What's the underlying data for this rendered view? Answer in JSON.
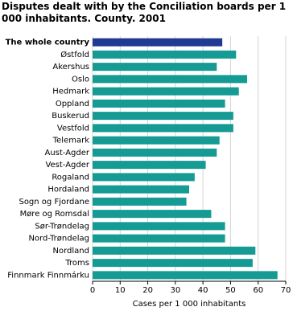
{
  "chart_data": {
    "type": "barh",
    "title": "Disputes dealt with by the Conciliation boards per 1 000 inhabitants. County. 2001",
    "x_label": "Cases per 1 000 inhabitants",
    "categories": [
      "The whole country",
      "Østfold",
      "Akershus",
      "Oslo",
      "Hedmark",
      "Oppland",
      "Buskerud",
      "Vestfold",
      "Telemark",
      "Aust-Agder",
      "Vest-Agder",
      "Rogaland",
      "Hordaland",
      "Sogn og Fjordane",
      "Møre og Romsdal",
      "Sør-Trøndelag",
      "Nord-Trøndelag",
      "Nordland",
      "Troms",
      "Finnmark Finnmárku"
    ],
    "values": [
      47,
      52,
      45,
      56,
      53,
      48,
      51,
      51,
      46,
      45,
      41,
      37,
      35,
      34,
      43,
      48,
      48,
      59,
      58,
      67
    ],
    "colors": [
      "#1f3a93",
      "#159a94",
      "#159a94",
      "#159a94",
      "#159a94",
      "#159a94",
      "#159a94",
      "#159a94",
      "#159a94",
      "#159a94",
      "#159a94",
      "#159a94",
      "#159a94",
      "#159a94",
      "#159a94",
      "#159a94",
      "#159a94",
      "#159a94",
      "#159a94",
      "#159a94"
    ],
    "xlim": [
      0,
      70
    ],
    "xticks": [
      0,
      10,
      20,
      30,
      40,
      50,
      60,
      70
    ],
    "grid": true
  }
}
